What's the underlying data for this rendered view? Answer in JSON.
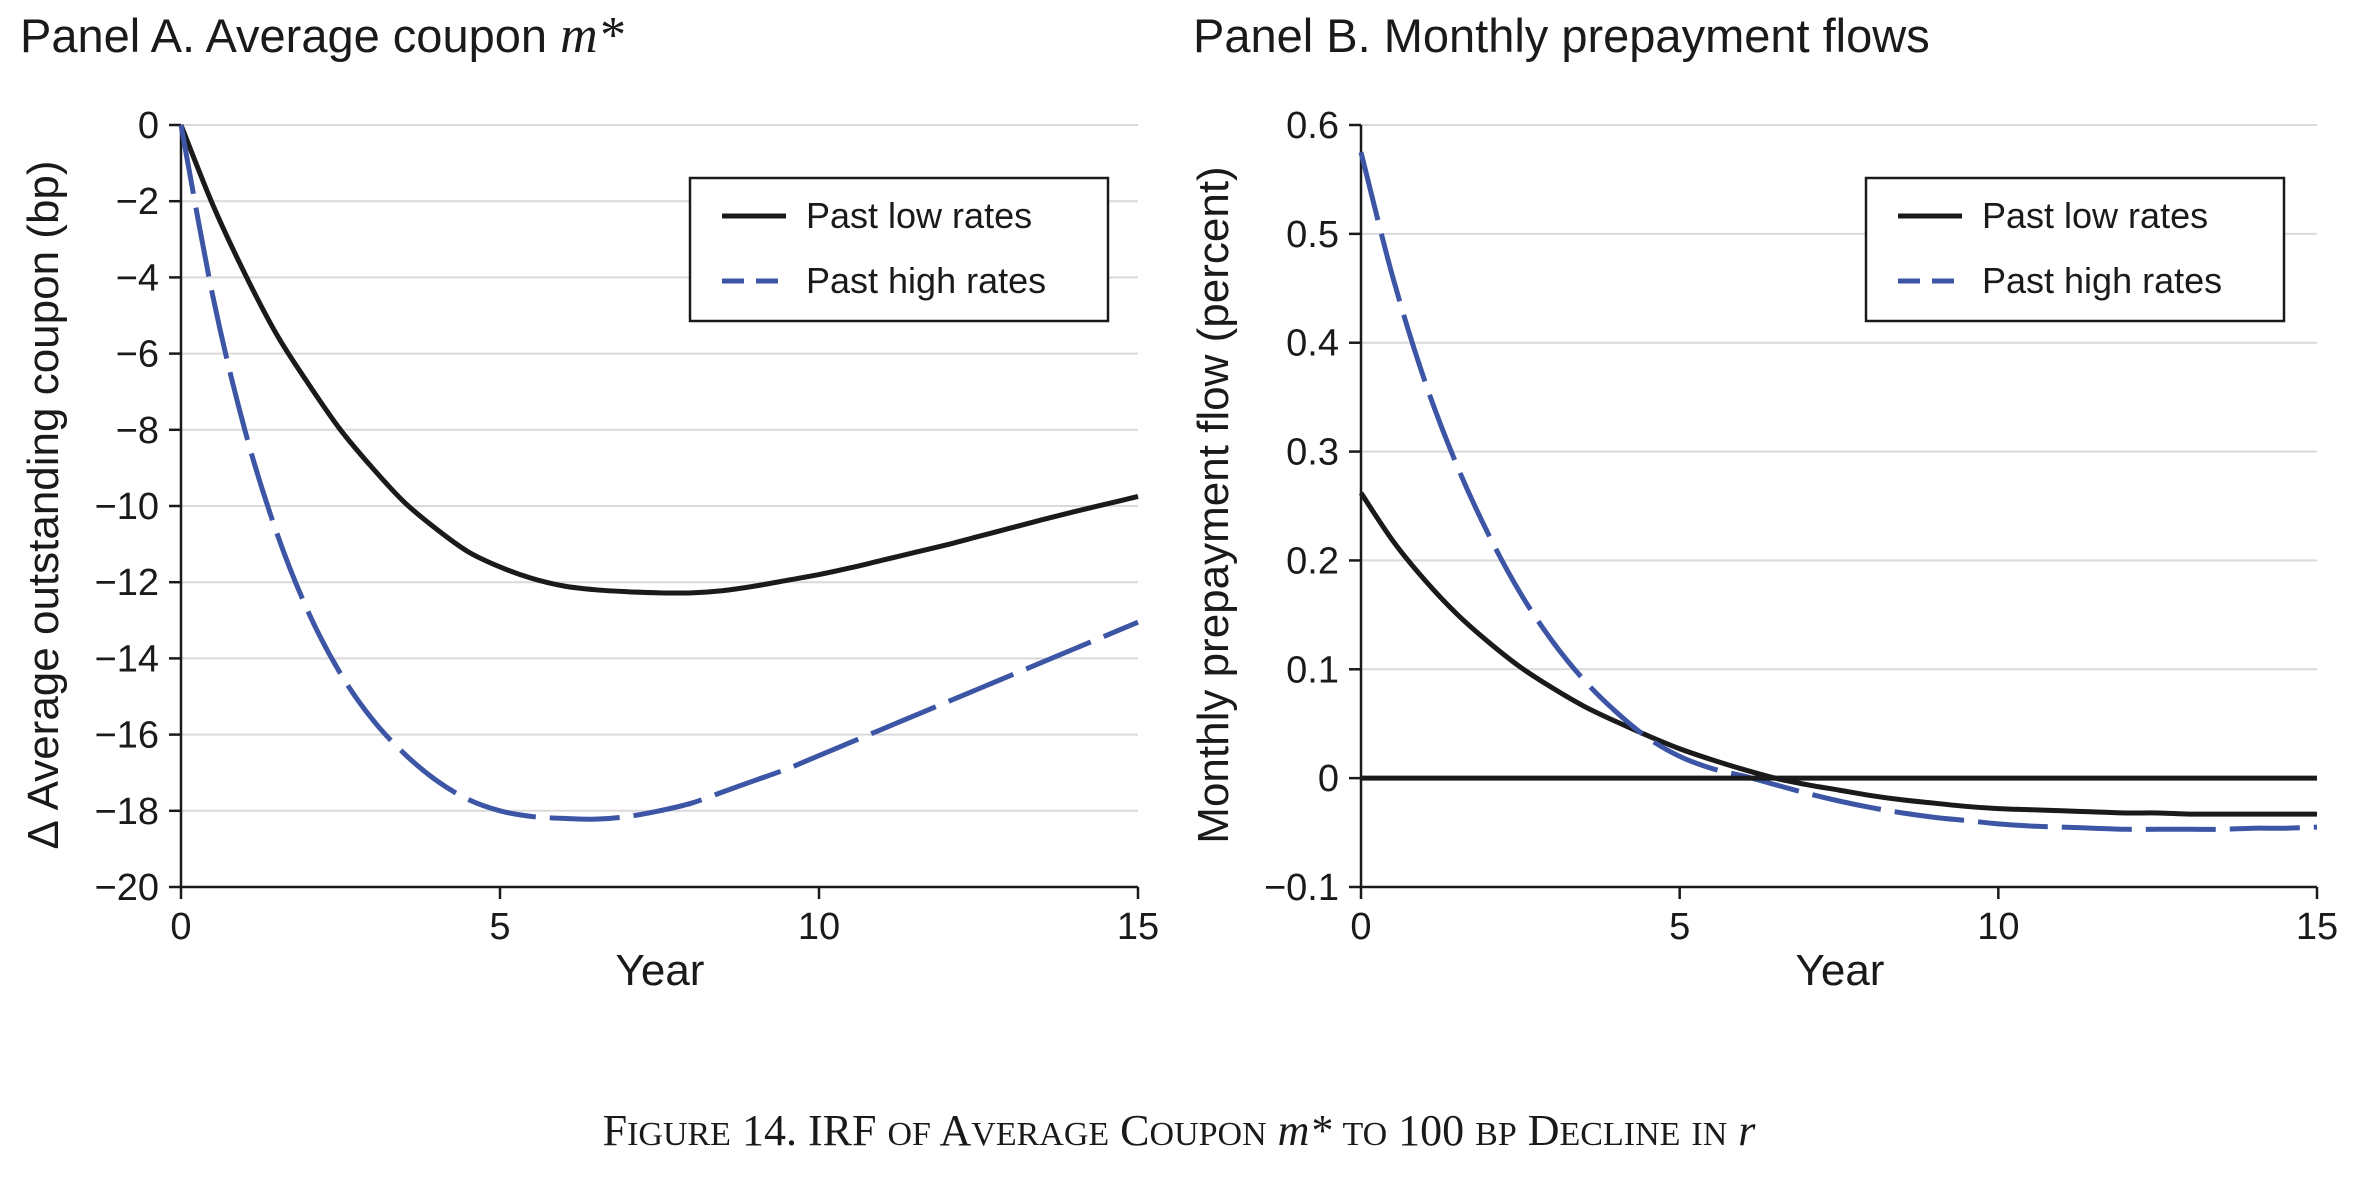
{
  "colors": {
    "low": "#1a1a1a",
    "high": "#3d55a5",
    "grid": "#d9d9d9"
  },
  "chart_data": [
    {
      "type": "line",
      "title": "Panel A. Average coupon",
      "title_var": "m*",
      "xlabel": "Year",
      "ylabel": "Δ Average outstanding coupon (bp)",
      "xlim": [
        0,
        15
      ],
      "ylim": [
        -20,
        0
      ],
      "xticks": [
        0,
        5,
        10,
        15
      ],
      "xtick_labels": [
        "0",
        "5",
        "10",
        "15"
      ],
      "yticks": [
        0,
        -2,
        -4,
        -6,
        -8,
        -10,
        -12,
        -14,
        -16,
        -18,
        -20
      ],
      "ytick_labels": [
        "0",
        "−2",
        "−4",
        "−6",
        "−8",
        "−10",
        "−12",
        "−14",
        "−16",
        "−18",
        "−20"
      ],
      "grid": "horizontal",
      "legend_position": "top-right",
      "series": [
        {
          "name": "Past low rates",
          "style": "solid",
          "color": "#1a1a1a",
          "x": [
            0,
            0.5,
            1,
            1.5,
            2,
            2.5,
            3,
            3.5,
            4,
            4.5,
            5,
            5.5,
            6,
            6.5,
            7,
            7.5,
            8,
            8.5,
            9,
            9.5,
            10,
            10.5,
            11,
            11.5,
            12,
            12.5,
            13,
            13.5,
            14,
            14.5,
            15
          ],
          "y": [
            0,
            -2.1,
            -3.9,
            -5.5,
            -6.8,
            -8.0,
            -9.0,
            -9.9,
            -10.6,
            -11.2,
            -11.6,
            -11.9,
            -12.1,
            -12.2,
            -12.25,
            -12.28,
            -12.28,
            -12.22,
            -12.1,
            -11.95,
            -11.8,
            -11.62,
            -11.42,
            -11.22,
            -11.02,
            -10.8,
            -10.58,
            -10.36,
            -10.15,
            -9.95,
            -9.75
          ]
        },
        {
          "name": "Past high rates",
          "style": "dashed",
          "color": "#3d55a5",
          "x": [
            0,
            0.5,
            1,
            1.5,
            2,
            2.5,
            3,
            3.5,
            4,
            4.5,
            5,
            5.5,
            6,
            6.5,
            7,
            7.5,
            8,
            8.5,
            9,
            9.5,
            10,
            10.5,
            11,
            11.5,
            12,
            12.5,
            13,
            13.5,
            14,
            14.5,
            15
          ],
          "y": [
            0,
            -4.5,
            -8.0,
            -10.7,
            -12.8,
            -14.4,
            -15.6,
            -16.5,
            -17.2,
            -17.7,
            -18.0,
            -18.15,
            -18.2,
            -18.22,
            -18.15,
            -18.0,
            -17.8,
            -17.5,
            -17.2,
            -16.9,
            -16.55,
            -16.2,
            -15.85,
            -15.5,
            -15.15,
            -14.8,
            -14.45,
            -14.1,
            -13.75,
            -13.4,
            -13.05
          ]
        }
      ]
    },
    {
      "type": "line",
      "title": "Panel B. Monthly prepayment flows",
      "xlabel": "Year",
      "ylabel": "Monthly prepayment flow (percent)",
      "xlim": [
        0,
        15
      ],
      "ylim": [
        -0.1,
        0.6
      ],
      "xticks": [
        0,
        5,
        10,
        15
      ],
      "xtick_labels": [
        "0",
        "5",
        "10",
        "15"
      ],
      "yticks": [
        0.6,
        0.5,
        0.4,
        0.3,
        0.2,
        0.1,
        0,
        -0.1
      ],
      "ytick_labels": [
        "0.6",
        "0.5",
        "0.4",
        "0.3",
        "0.2",
        "0.1",
        "0",
        "−0.1"
      ],
      "grid": "horizontal",
      "legend_position": "top-right",
      "series": [
        {
          "name": "Past low rates",
          "style": "solid",
          "color": "#1a1a1a",
          "x": [
            0,
            0.5,
            1,
            1.5,
            2,
            2.5,
            3,
            3.5,
            4,
            4.5,
            5,
            5.5,
            6,
            6.5,
            7,
            7.5,
            8,
            8.5,
            9,
            9.5,
            10,
            10.5,
            11,
            11.5,
            12,
            12.5,
            13,
            13.5,
            14,
            14.5,
            15
          ],
          "y": [
            0.262,
            0.218,
            0.182,
            0.151,
            0.125,
            0.102,
            0.083,
            0.066,
            0.052,
            0.039,
            0.027,
            0.017,
            0.008,
            0.0,
            -0.006,
            -0.011,
            -0.016,
            -0.02,
            -0.023,
            -0.026,
            -0.028,
            -0.029,
            -0.03,
            -0.031,
            -0.032,
            -0.032,
            -0.033,
            -0.033,
            -0.033,
            -0.033,
            -0.033
          ]
        },
        {
          "name": "Past high rates",
          "style": "dashed",
          "color": "#3d55a5",
          "x": [
            0,
            0.5,
            1,
            1.5,
            2,
            2.5,
            3,
            3.5,
            4,
            4.5,
            5,
            5.5,
            6,
            6.5,
            7,
            7.5,
            8,
            8.5,
            9,
            9.5,
            10,
            10.5,
            11,
            11.5,
            12,
            12.5,
            13,
            13.5,
            14,
            14.5,
            15
          ],
          "y": [
            0.575,
            0.46,
            0.365,
            0.288,
            0.224,
            0.17,
            0.126,
            0.09,
            0.061,
            0.037,
            0.02,
            0.009,
            0.002,
            -0.006,
            -0.014,
            -0.021,
            -0.027,
            -0.032,
            -0.036,
            -0.039,
            -0.042,
            -0.044,
            -0.045,
            -0.046,
            -0.047,
            -0.047,
            -0.047,
            -0.047,
            -0.046,
            -0.046,
            -0.045
          ]
        },
        {
          "name": "",
          "style": "solid",
          "color": "#1a1a1a",
          "x": [
            0,
            15
          ],
          "y": [
            0,
            0
          ]
        }
      ]
    }
  ],
  "caption": {
    "prefix": "Figure 14. IRF of Average Coupon",
    "var": "m*",
    "middle": "to 100 bp Decline in",
    "var2": "r"
  }
}
